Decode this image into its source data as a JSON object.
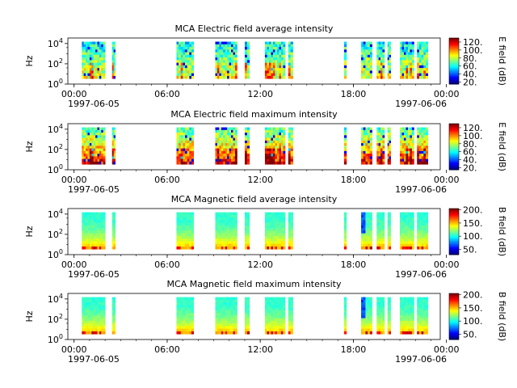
{
  "chart_data": [
    {
      "type": "heatmap",
      "title": "MCA  Electric field average intensity",
      "ylabel": "Hz",
      "yticks": [
        {
          "base": "10",
          "exp": "0"
        },
        {
          "base": "10",
          "exp": "2"
        },
        {
          "base": "10",
          "exp": "4"
        }
      ],
      "xticks": [
        "00:00",
        "06:00",
        "12:00",
        "18:00",
        "00:00"
      ],
      "xdates": [
        "1997-06-05",
        "1997-06-06"
      ],
      "colorbar": {
        "label": "E field (dB)",
        "ticks": [
          "20.",
          "40.",
          "60.",
          "80.",
          "100.",
          "120."
        ],
        "range": [
          15,
          130
        ]
      },
      "profile": "e-avg"
    },
    {
      "type": "heatmap",
      "title": "MCA  Electric field maximum intensity",
      "ylabel": "Hz",
      "yticks": [
        {
          "base": "10",
          "exp": "0"
        },
        {
          "base": "10",
          "exp": "2"
        },
        {
          "base": "10",
          "exp": "4"
        }
      ],
      "xticks": [
        "00:00",
        "06:00",
        "12:00",
        "18:00",
        "00:00"
      ],
      "xdates": [
        "1997-06-05",
        "1997-06-06"
      ],
      "colorbar": {
        "label": "E field (dB)",
        "ticks": [
          "20.",
          "40.",
          "60.",
          "80.",
          "100.",
          "120."
        ],
        "range": [
          15,
          130
        ]
      },
      "profile": "e-max"
    },
    {
      "type": "heatmap",
      "title": "MCA  Magnetic field average intensity",
      "ylabel": "Hz",
      "yticks": [
        {
          "base": "10",
          "exp": "0"
        },
        {
          "base": "10",
          "exp": "2"
        },
        {
          "base": "10",
          "exp": "4"
        }
      ],
      "xticks": [
        "00:00",
        "06:00",
        "12:00",
        "18:00",
        "00:00"
      ],
      "xdates": [
        "1997-06-05",
        "1997-06-06"
      ],
      "colorbar": {
        "label": "B field (dB)",
        "ticks": [
          "50.",
          "100.",
          "150.",
          "200."
        ],
        "range": [
          30,
          205
        ]
      },
      "profile": "b-avg"
    },
    {
      "type": "heatmap",
      "title": "MCA  Magnetic field maximum intensity",
      "ylabel": "Hz",
      "yticks": [
        {
          "base": "10",
          "exp": "0"
        },
        {
          "base": "10",
          "exp": "2"
        },
        {
          "base": "10",
          "exp": "4"
        }
      ],
      "xticks": [
        "00:00",
        "06:00",
        "12:00",
        "18:00",
        "00:00"
      ],
      "xdates": [
        "1997-06-05",
        "1997-06-06"
      ],
      "colorbar": {
        "label": "B field (dB)",
        "ticks": [
          "50.",
          "100.",
          "150.",
          "200."
        ],
        "range": [
          30,
          205
        ]
      },
      "profile": "b-max"
    }
  ]
}
